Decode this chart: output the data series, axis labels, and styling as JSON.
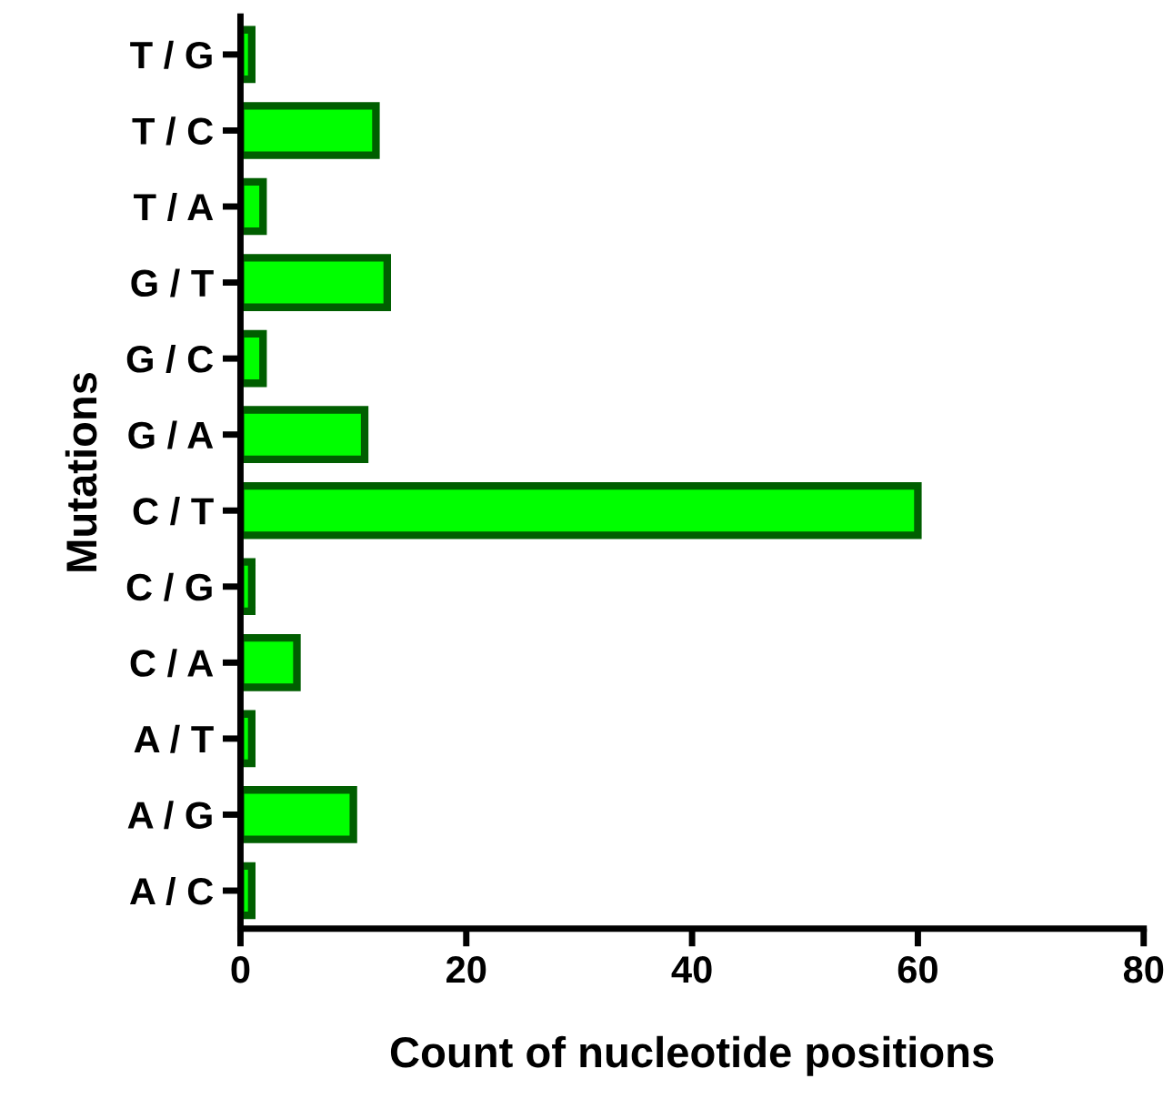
{
  "chart_data": {
    "type": "bar",
    "orientation": "horizontal",
    "xlabel": "Count of nucleotide positions",
    "ylabel": "Mutations",
    "categories": [
      "T / G",
      "T / C",
      "T / A",
      "G / T",
      "G / C",
      "G / A",
      "C / T",
      "C / G",
      "C / A",
      "A / T",
      "A / G",
      "A / C"
    ],
    "values": [
      1,
      12,
      2,
      13,
      2,
      11,
      60,
      1,
      5,
      1,
      10,
      1
    ],
    "color": "#00ff00",
    "xlim": [
      0,
      80
    ],
    "xticks": [
      0,
      20,
      40,
      60,
      80
    ],
    "grid": false,
    "legend": false
  }
}
